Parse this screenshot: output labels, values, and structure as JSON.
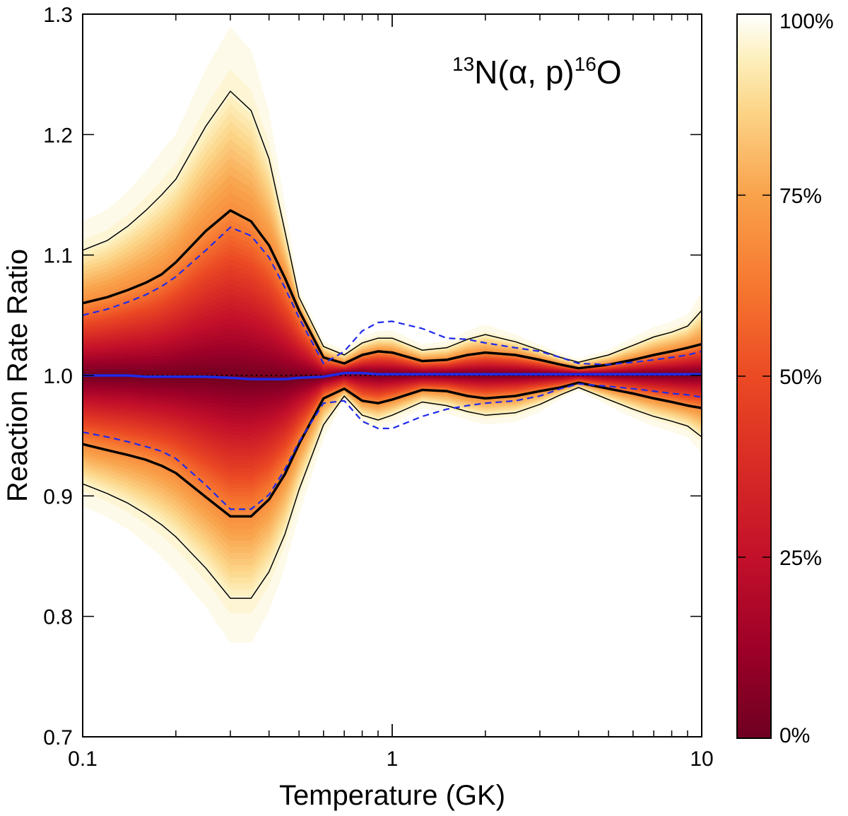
{
  "chart_data": {
    "type": "line",
    "title": "",
    "annotation": {
      "iso1": "13",
      "elem1": "N(α, p)",
      "iso2": "16",
      "elem2": "O"
    },
    "xlabel": "Temperature (GK)",
    "ylabel": "Reaction Rate Ratio",
    "xscale": "log",
    "xlim": [
      0.1,
      10
    ],
    "ylim": [
      0.7,
      1.3
    ],
    "xticks": [
      0.1,
      1,
      10
    ],
    "xtick_labels": [
      "0.1",
      "1",
      "10"
    ],
    "yticks": [
      0.7,
      0.8,
      0.9,
      1.0,
      1.1,
      1.2,
      1.3
    ],
    "ytick_labels": [
      "0.7",
      "0.8",
      "0.9",
      "1.0",
      "1.1",
      "1.2",
      "1.3"
    ],
    "x": [
      0.1,
      0.12,
      0.14,
      0.16,
      0.18,
      0.2,
      0.25,
      0.3,
      0.35,
      0.4,
      0.45,
      0.5,
      0.6,
      0.7,
      0.8,
      0.9,
      1.0,
      1.25,
      1.5,
      1.75,
      2.0,
      2.5,
      3.0,
      3.5,
      4.0,
      5.0,
      6.0,
      7.0,
      8.0,
      9.0,
      10.0
    ],
    "series": [
      {
        "name": "upper outer bound",
        "style": "thin-black",
        "values": [
          1.104,
          1.112,
          1.124,
          1.137,
          1.15,
          1.163,
          1.207,
          1.236,
          1.22,
          1.18,
          1.12,
          1.065,
          1.024,
          1.017,
          1.027,
          1.031,
          1.031,
          1.021,
          1.023,
          1.03,
          1.034,
          1.028,
          1.021,
          1.015,
          1.011,
          1.017,
          1.025,
          1.032,
          1.036,
          1.041,
          1.054
        ]
      },
      {
        "name": "upper inner bound",
        "style": "thick-black",
        "values": [
          1.06,
          1.065,
          1.071,
          1.077,
          1.084,
          1.094,
          1.12,
          1.137,
          1.128,
          1.108,
          1.081,
          1.054,
          1.015,
          1.01,
          1.017,
          1.02,
          1.019,
          1.012,
          1.013,
          1.017,
          1.019,
          1.017,
          1.013,
          1.009,
          1.006,
          1.009,
          1.013,
          1.017,
          1.02,
          1.023,
          1.026
        ]
      },
      {
        "name": "median",
        "style": "blue-solid",
        "values": [
          1.0,
          1.0,
          1.0,
          0.999,
          0.999,
          0.999,
          0.999,
          0.998,
          0.997,
          0.997,
          0.997,
          0.998,
          0.999,
          1.002,
          1.002,
          1.001,
          1.001,
          1.001,
          1.001,
          1.001,
          1.001,
          1.001,
          1.001,
          1.001,
          1.001,
          1.001,
          1.001,
          1.001,
          1.001,
          1.001,
          1.001
        ]
      },
      {
        "name": "lower inner bound",
        "style": "thick-black",
        "values": [
          0.943,
          0.938,
          0.934,
          0.93,
          0.925,
          0.919,
          0.899,
          0.883,
          0.883,
          0.897,
          0.918,
          0.943,
          0.981,
          0.989,
          0.979,
          0.977,
          0.98,
          0.988,
          0.987,
          0.983,
          0.981,
          0.983,
          0.987,
          0.99,
          0.994,
          0.989,
          0.985,
          0.981,
          0.978,
          0.975,
          0.973
        ]
      },
      {
        "name": "lower outer bound",
        "style": "thin-black",
        "values": [
          0.91,
          0.902,
          0.894,
          0.885,
          0.876,
          0.866,
          0.84,
          0.815,
          0.815,
          0.837,
          0.868,
          0.905,
          0.959,
          0.983,
          0.967,
          0.963,
          0.967,
          0.978,
          0.975,
          0.97,
          0.967,
          0.969,
          0.976,
          0.984,
          0.99,
          0.98,
          0.972,
          0.966,
          0.962,
          0.958,
          0.949
        ]
      },
      {
        "name": "upper dashed",
        "style": "blue-dashed",
        "values": [
          1.05,
          1.055,
          1.061,
          1.067,
          1.074,
          1.082,
          1.104,
          1.123,
          1.116,
          1.098,
          1.073,
          1.048,
          1.01,
          1.02,
          1.037,
          1.044,
          1.045,
          1.039,
          1.031,
          1.03,
          1.027,
          1.023,
          1.02,
          1.015,
          1.01,
          1.009,
          1.011,
          1.013,
          1.015,
          1.017,
          1.02
        ]
      },
      {
        "name": "lower dashed",
        "style": "blue-dashed",
        "values": [
          0.953,
          0.949,
          0.945,
          0.941,
          0.937,
          0.931,
          0.909,
          0.889,
          0.889,
          0.901,
          0.922,
          0.945,
          0.977,
          0.979,
          0.962,
          0.956,
          0.956,
          0.966,
          0.972,
          0.975,
          0.977,
          0.979,
          0.983,
          0.989,
          0.993,
          0.991,
          0.989,
          0.987,
          0.985,
          0.984,
          0.982
        ]
      }
    ],
    "reference_line": {
      "y": 1.0,
      "style": "dotted-black"
    },
    "colorbar": {
      "labels": [
        "0%",
        "25%",
        "50%",
        "75%",
        "100%"
      ],
      "label_values": [
        0,
        25,
        50,
        75,
        100
      ],
      "range": [
        0,
        100
      ],
      "stops": [
        {
          "value": 0,
          "color": "#6e0021"
        },
        {
          "value": 12,
          "color": "#9c0028"
        },
        {
          "value": 25,
          "color": "#c3102a"
        },
        {
          "value": 38,
          "color": "#d92c25"
        },
        {
          "value": 50,
          "color": "#eb4a24"
        },
        {
          "value": 62,
          "color": "#f6762f"
        },
        {
          "value": 75,
          "color": "#f9a24b"
        },
        {
          "value": 87,
          "color": "#fcd68a"
        },
        {
          "value": 94,
          "color": "#fdf0be"
        },
        {
          "value": 100,
          "color": "#ffffff"
        }
      ]
    },
    "colors": {
      "blue": "#1f2bea",
      "black": "#000000"
    }
  }
}
